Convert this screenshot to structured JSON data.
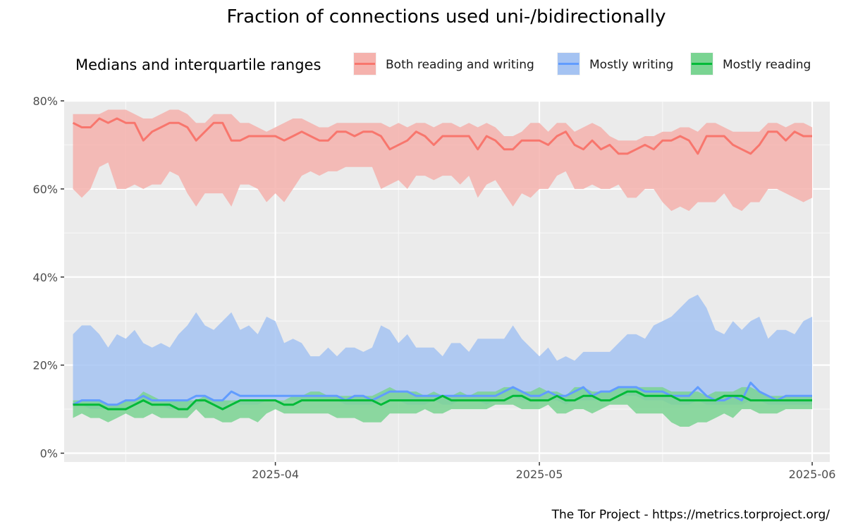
{
  "chart_data": {
    "type": "area",
    "title": "Fraction of connections used uni-/bidirectionally",
    "legend": {
      "title": "Medians and interquartile ranges",
      "placement": "top",
      "entries": [
        "Both reading and writing",
        "Mostly writing",
        "Mostly reading"
      ]
    },
    "credit": "The Tor Project - https://metrics.torproject.org/",
    "x_axis": {
      "type": "date",
      "range": [
        "2025-03-08",
        "2025-06-03"
      ],
      "ticks": [
        {
          "date": "2025-04-01",
          "label": "2025-04"
        },
        {
          "date": "2025-05-01",
          "label": "2025-05"
        },
        {
          "date": "2025-06-01",
          "label": "2025-06"
        }
      ],
      "minor_ticks": [
        "2025-03-15",
        "2025-04-15",
        "2025-05-15"
      ]
    },
    "y_axis": {
      "range": [
        -0.02,
        0.8
      ],
      "ticks": [
        {
          "value": 0.0,
          "label": "0%"
        },
        {
          "value": 0.2,
          "label": "20%"
        },
        {
          "value": 0.4,
          "label": "40%"
        },
        {
          "value": 0.6,
          "label": "60%"
        },
        {
          "value": 0.8,
          "label": "80%"
        }
      ],
      "minor_ticks": [
        0.1,
        0.3,
        0.5,
        0.7
      ]
    },
    "grid": true,
    "start_date": "2025-03-09",
    "series": [
      {
        "name": "Both reading and writing",
        "color": "#F8766D",
        "fill": "#F5B2AD",
        "median": [
          0.75,
          0.74,
          0.74,
          0.76,
          0.75,
          0.76,
          0.75,
          0.75,
          0.71,
          0.73,
          0.74,
          0.75,
          0.75,
          0.74,
          0.71,
          0.73,
          0.75,
          0.75,
          0.71,
          0.71,
          0.72,
          0.72,
          0.72,
          0.72,
          0.71,
          0.72,
          0.73,
          0.72,
          0.71,
          0.71,
          0.73,
          0.73,
          0.72,
          0.73,
          0.73,
          0.72,
          0.69,
          0.7,
          0.71,
          0.73,
          0.72,
          0.7,
          0.72,
          0.72,
          0.72,
          0.72,
          0.69,
          0.72,
          0.71,
          0.69,
          0.69,
          0.71,
          0.71,
          0.71,
          0.7,
          0.72,
          0.73,
          0.7,
          0.69,
          0.71,
          0.69,
          0.7,
          0.68,
          0.68,
          0.69,
          0.7,
          0.69,
          0.71,
          0.71,
          0.72,
          0.71,
          0.68,
          0.72,
          0.72,
          0.72,
          0.7,
          0.69,
          0.68,
          0.7,
          0.73,
          0.73,
          0.71,
          0.73,
          0.72,
          0.72
        ],
        "q1": [
          0.6,
          0.58,
          0.6,
          0.65,
          0.66,
          0.6,
          0.6,
          0.61,
          0.6,
          0.61,
          0.61,
          0.64,
          0.63,
          0.59,
          0.56,
          0.59,
          0.59,
          0.59,
          0.56,
          0.61,
          0.61,
          0.6,
          0.57,
          0.59,
          0.57,
          0.6,
          0.63,
          0.64,
          0.63,
          0.64,
          0.64,
          0.65,
          0.65,
          0.65,
          0.65,
          0.6,
          0.61,
          0.62,
          0.6,
          0.63,
          0.63,
          0.62,
          0.63,
          0.63,
          0.61,
          0.63,
          0.58,
          0.61,
          0.62,
          0.59,
          0.56,
          0.59,
          0.58,
          0.6,
          0.6,
          0.63,
          0.64,
          0.6,
          0.6,
          0.61,
          0.6,
          0.6,
          0.61,
          0.58,
          0.58,
          0.6,
          0.6,
          0.57,
          0.55,
          0.56,
          0.55,
          0.57,
          0.57,
          0.57,
          0.59,
          0.56,
          0.55,
          0.57,
          0.57,
          0.6,
          0.6,
          0.59,
          0.58,
          0.57,
          0.58
        ],
        "q3": [
          0.77,
          0.77,
          0.77,
          0.77,
          0.78,
          0.78,
          0.78,
          0.77,
          0.76,
          0.76,
          0.77,
          0.78,
          0.78,
          0.77,
          0.75,
          0.75,
          0.77,
          0.77,
          0.77,
          0.75,
          0.75,
          0.74,
          0.73,
          0.74,
          0.75,
          0.76,
          0.76,
          0.75,
          0.74,
          0.74,
          0.75,
          0.75,
          0.75,
          0.75,
          0.75,
          0.75,
          0.74,
          0.75,
          0.74,
          0.75,
          0.75,
          0.74,
          0.75,
          0.75,
          0.74,
          0.75,
          0.74,
          0.75,
          0.74,
          0.72,
          0.72,
          0.73,
          0.75,
          0.75,
          0.73,
          0.75,
          0.75,
          0.73,
          0.74,
          0.75,
          0.74,
          0.72,
          0.71,
          0.71,
          0.71,
          0.72,
          0.72,
          0.73,
          0.73,
          0.74,
          0.74,
          0.73,
          0.75,
          0.75,
          0.74,
          0.73,
          0.73,
          0.73,
          0.73,
          0.75,
          0.75,
          0.74,
          0.75,
          0.75,
          0.74
        ]
      },
      {
        "name": "Mostly writing",
        "color": "#619CFF",
        "fill": "#A5C3F2",
        "median": [
          0.11,
          0.12,
          0.12,
          0.12,
          0.11,
          0.11,
          0.12,
          0.12,
          0.13,
          0.12,
          0.12,
          0.12,
          0.12,
          0.12,
          0.13,
          0.13,
          0.12,
          0.12,
          0.14,
          0.13,
          0.13,
          0.13,
          0.13,
          0.13,
          0.13,
          0.13,
          0.13,
          0.13,
          0.13,
          0.13,
          0.13,
          0.12,
          0.13,
          0.13,
          0.12,
          0.13,
          0.14,
          0.14,
          0.14,
          0.13,
          0.13,
          0.13,
          0.13,
          0.13,
          0.13,
          0.13,
          0.13,
          0.13,
          0.13,
          0.14,
          0.15,
          0.14,
          0.13,
          0.13,
          0.14,
          0.13,
          0.13,
          0.14,
          0.15,
          0.13,
          0.14,
          0.14,
          0.15,
          0.15,
          0.15,
          0.14,
          0.14,
          0.14,
          0.13,
          0.13,
          0.13,
          0.15,
          0.13,
          0.12,
          0.12,
          0.13,
          0.12,
          0.16,
          0.14,
          0.13,
          0.12,
          0.13,
          0.13,
          0.13,
          0.13
        ],
        "q1": [
          0.11,
          0.11,
          0.1,
          0.1,
          0.1,
          0.1,
          0.1,
          0.11,
          0.12,
          0.11,
          0.11,
          0.1,
          0.1,
          0.1,
          0.11,
          0.12,
          0.11,
          0.1,
          0.12,
          0.11,
          0.11,
          0.11,
          0.12,
          0.12,
          0.12,
          0.12,
          0.12,
          0.12,
          0.12,
          0.12,
          0.12,
          0.11,
          0.11,
          0.11,
          0.11,
          0.12,
          0.12,
          0.12,
          0.11,
          0.11,
          0.11,
          0.12,
          0.11,
          0.11,
          0.12,
          0.12,
          0.12,
          0.11,
          0.12,
          0.12,
          0.13,
          0.12,
          0.12,
          0.12,
          0.12,
          0.12,
          0.11,
          0.12,
          0.12,
          0.12,
          0.12,
          0.12,
          0.13,
          0.13,
          0.13,
          0.12,
          0.12,
          0.12,
          0.11,
          0.11,
          0.11,
          0.12,
          0.11,
          0.11,
          0.11,
          0.11,
          0.11,
          0.12,
          0.12,
          0.11,
          0.11,
          0.11,
          0.11,
          0.11,
          0.11
        ],
        "q3": [
          0.27,
          0.29,
          0.29,
          0.27,
          0.24,
          0.27,
          0.26,
          0.28,
          0.25,
          0.24,
          0.25,
          0.24,
          0.27,
          0.29,
          0.32,
          0.29,
          0.28,
          0.3,
          0.32,
          0.28,
          0.29,
          0.27,
          0.31,
          0.3,
          0.25,
          0.26,
          0.25,
          0.22,
          0.22,
          0.24,
          0.22,
          0.24,
          0.24,
          0.23,
          0.24,
          0.29,
          0.28,
          0.25,
          0.27,
          0.24,
          0.24,
          0.24,
          0.22,
          0.25,
          0.25,
          0.23,
          0.26,
          0.26,
          0.26,
          0.26,
          0.29,
          0.26,
          0.24,
          0.22,
          0.24,
          0.21,
          0.22,
          0.21,
          0.23,
          0.23,
          0.23,
          0.23,
          0.25,
          0.27,
          0.27,
          0.26,
          0.29,
          0.3,
          0.31,
          0.33,
          0.35,
          0.36,
          0.33,
          0.28,
          0.27,
          0.3,
          0.28,
          0.3,
          0.31,
          0.26,
          0.28,
          0.28,
          0.27,
          0.3,
          0.31
        ]
      },
      {
        "name": "Mostly reading",
        "color": "#00BA38",
        "fill": "#7AD492",
        "median": [
          0.11,
          0.11,
          0.11,
          0.11,
          0.1,
          0.1,
          0.1,
          0.11,
          0.12,
          0.11,
          0.11,
          0.11,
          0.1,
          0.1,
          0.12,
          0.12,
          0.11,
          0.1,
          0.11,
          0.12,
          0.12,
          0.12,
          0.12,
          0.12,
          0.11,
          0.11,
          0.12,
          0.12,
          0.12,
          0.12,
          0.12,
          0.12,
          0.12,
          0.12,
          0.12,
          0.11,
          0.12,
          0.12,
          0.12,
          0.12,
          0.12,
          0.12,
          0.13,
          0.12,
          0.12,
          0.12,
          0.12,
          0.12,
          0.12,
          0.12,
          0.13,
          0.13,
          0.12,
          0.12,
          0.12,
          0.13,
          0.12,
          0.12,
          0.13,
          0.13,
          0.12,
          0.12,
          0.13,
          0.14,
          0.14,
          0.13,
          0.13,
          0.13,
          0.13,
          0.12,
          0.12,
          0.12,
          0.12,
          0.12,
          0.13,
          0.13,
          0.13,
          0.12,
          0.12,
          0.12,
          0.12,
          0.12,
          0.12,
          0.12,
          0.12
        ],
        "q1": [
          0.08,
          0.09,
          0.08,
          0.08,
          0.07,
          0.08,
          0.09,
          0.08,
          0.08,
          0.09,
          0.08,
          0.08,
          0.08,
          0.08,
          0.1,
          0.08,
          0.08,
          0.07,
          0.07,
          0.08,
          0.08,
          0.07,
          0.09,
          0.1,
          0.09,
          0.09,
          0.09,
          0.09,
          0.09,
          0.09,
          0.08,
          0.08,
          0.08,
          0.07,
          0.07,
          0.07,
          0.09,
          0.09,
          0.09,
          0.09,
          0.1,
          0.09,
          0.09,
          0.1,
          0.1,
          0.1,
          0.1,
          0.1,
          0.11,
          0.11,
          0.11,
          0.1,
          0.1,
          0.1,
          0.11,
          0.09,
          0.09,
          0.1,
          0.1,
          0.09,
          0.1,
          0.11,
          0.11,
          0.11,
          0.09,
          0.09,
          0.09,
          0.09,
          0.07,
          0.06,
          0.06,
          0.07,
          0.07,
          0.08,
          0.09,
          0.08,
          0.1,
          0.1,
          0.09,
          0.09,
          0.09,
          0.1,
          0.1,
          0.1,
          0.1
        ],
        "q3": [
          0.12,
          0.12,
          0.12,
          0.12,
          0.11,
          0.11,
          0.12,
          0.12,
          0.14,
          0.13,
          0.12,
          0.12,
          0.12,
          0.12,
          0.12,
          0.13,
          0.12,
          0.12,
          0.12,
          0.12,
          0.12,
          0.12,
          0.12,
          0.12,
          0.12,
          0.13,
          0.13,
          0.14,
          0.14,
          0.13,
          0.13,
          0.13,
          0.13,
          0.13,
          0.13,
          0.14,
          0.15,
          0.14,
          0.14,
          0.14,
          0.13,
          0.14,
          0.13,
          0.13,
          0.14,
          0.13,
          0.14,
          0.14,
          0.14,
          0.15,
          0.15,
          0.14,
          0.14,
          0.15,
          0.14,
          0.14,
          0.13,
          0.15,
          0.15,
          0.14,
          0.14,
          0.14,
          0.15,
          0.15,
          0.15,
          0.15,
          0.15,
          0.15,
          0.14,
          0.14,
          0.14,
          0.14,
          0.13,
          0.14,
          0.14,
          0.14,
          0.15,
          0.15,
          0.14,
          0.13,
          0.13,
          0.13,
          0.13,
          0.13,
          0.13
        ]
      }
    ]
  }
}
